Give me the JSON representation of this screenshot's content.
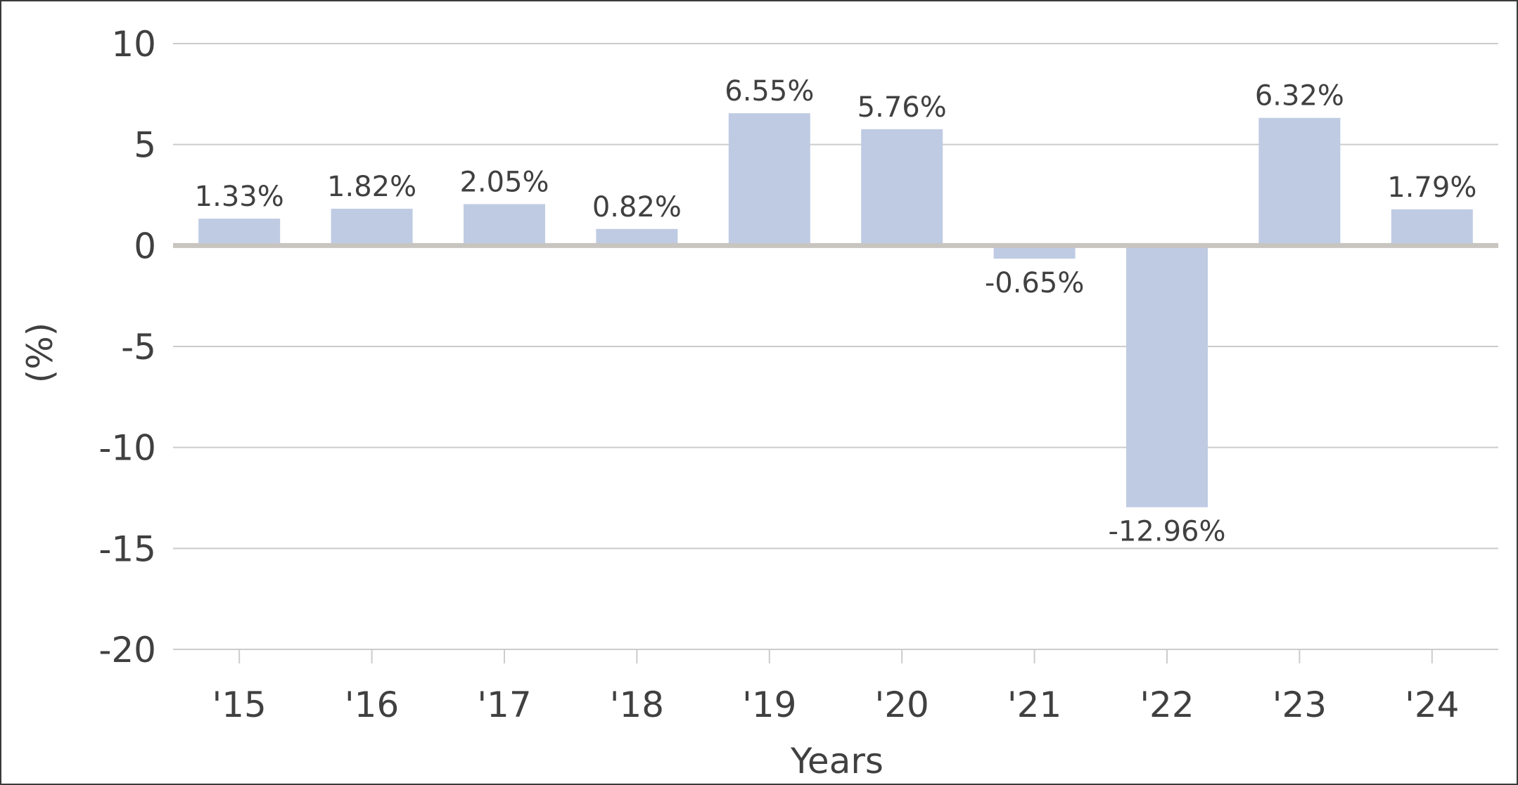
{
  "chart_data": {
    "type": "bar",
    "categories": [
      "'15",
      "'16",
      "'17",
      "'18",
      "'19",
      "'20",
      "'21",
      "'22",
      "'23",
      "'24"
    ],
    "values": [
      1.33,
      1.82,
      2.05,
      0.82,
      6.55,
      5.76,
      -0.65,
      -12.96,
      6.32,
      1.79
    ],
    "data_labels": [
      "1.33%",
      "1.82%",
      "2.05%",
      "0.82%",
      "6.55%",
      "5.76%",
      "-0.65%",
      "-12.96%",
      "6.32%",
      "1.79%"
    ],
    "xlabel": "Years",
    "ylabel": "(%)",
    "ylim": [
      -20,
      10
    ],
    "yticks": [
      10,
      5,
      0,
      -5,
      -10,
      -15,
      -20
    ],
    "grid": true,
    "colors": {
      "bar": "#bfcbe3",
      "grid": "#cccccc",
      "zero_line": "#c8c4c0",
      "text": "#404040",
      "border": "#3a3a3a"
    }
  }
}
